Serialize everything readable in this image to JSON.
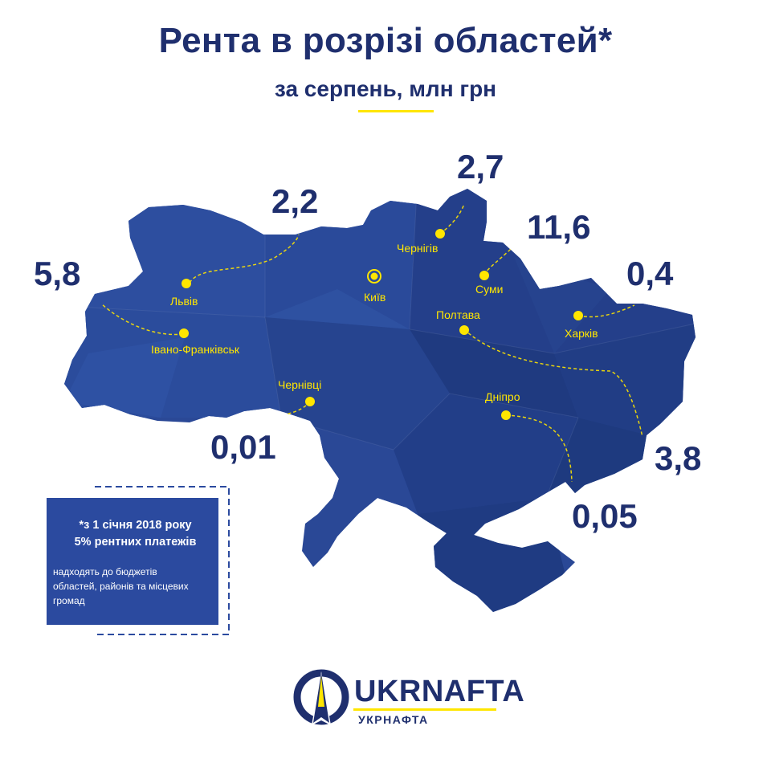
{
  "header": {
    "title": "Рента в розрізі областей*",
    "subtitle": "за серпень, млн грн"
  },
  "regions": [
    {
      "city": "Львів",
      "value": "2,2"
    },
    {
      "city": "Івано-Франківськ",
      "value": "5,8"
    },
    {
      "city": "Чернівці",
      "value": "0,01"
    },
    {
      "city": "Київ",
      "value": ""
    },
    {
      "city": "Чернігів",
      "value": "2,7"
    },
    {
      "city": "Суми",
      "value": "11,6"
    },
    {
      "city": "Харків",
      "value": "0,4"
    },
    {
      "city": "Полтава",
      "value": "3,8"
    },
    {
      "city": "Дніпро",
      "value": "0,05"
    }
  ],
  "note": {
    "bold_line1": "*з 1 січня 2018 року",
    "bold_line2": "5% рентних платежів",
    "small_line1": "надходять до бюджетів",
    "small_line2": "областей, районів та місцевих",
    "small_line3": "громад"
  },
  "logo": {
    "name": "UKRNAFTA",
    "name_cyrillic": "УКРНАФТА"
  },
  "colors": {
    "brand_navy": "#1f2f6e",
    "map_blue": "#2a4896",
    "accent_yellow": "#ffe600"
  }
}
